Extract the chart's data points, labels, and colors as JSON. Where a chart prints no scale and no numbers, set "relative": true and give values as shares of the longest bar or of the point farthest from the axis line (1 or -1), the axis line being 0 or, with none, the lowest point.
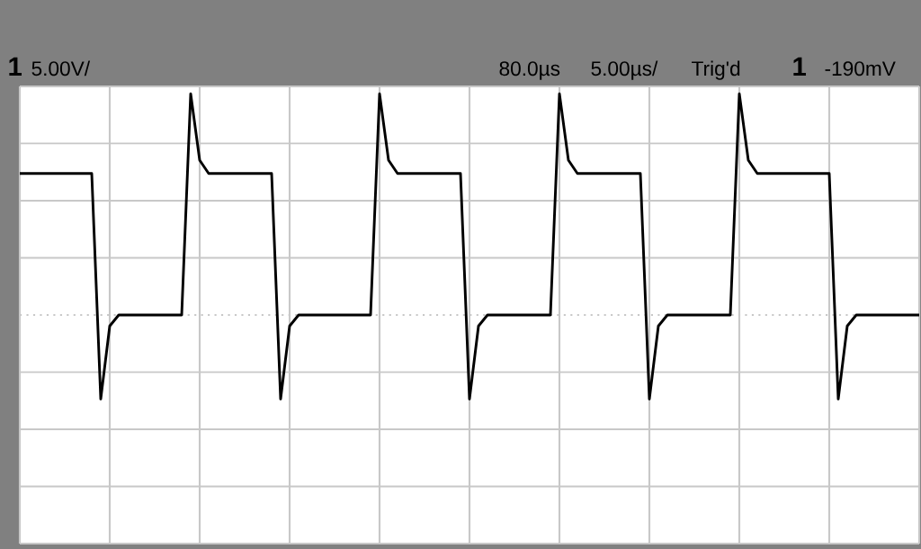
{
  "chart_data": {
    "type": "line",
    "relative": true,
    "grid": true,
    "color": "#000000",
    "ref_lines": [
      {
        "axis": "y",
        "value": 0,
        "color": "#c8c8c8",
        "line_style": "dotted"
      }
    ],
    "annotations": [
      "1",
      "5.00V/",
      "80.0µs",
      "5.00µs/",
      "Trig'd",
      "1",
      "-190mV"
    ],
    "categories": [
      null,
      null,
      null,
      null,
      null,
      null,
      null,
      null,
      null,
      null,
      null,
      null,
      null,
      null,
      null,
      null,
      null,
      null,
      null,
      null,
      null,
      null,
      null,
      null,
      null,
      null,
      null,
      null,
      null,
      null,
      null,
      null,
      null,
      null,
      null,
      null,
      null,
      null,
      null,
      null,
      null,
      null,
      null,
      null,
      null,
      null,
      null,
      null,
      null,
      null,
      null,
      null,
      null,
      null,
      null,
      null,
      null,
      null,
      null,
      null,
      null,
      null,
      null,
      null,
      null,
      null,
      null,
      null,
      null,
      null,
      null,
      null,
      null,
      null,
      null,
      null,
      null,
      null,
      null,
      null,
      null,
      null,
      null,
      null,
      null,
      null,
      null,
      null,
      null,
      null,
      null,
      null,
      null,
      null,
      null,
      null,
      null,
      null,
      null,
      null,
      null
    ],
    "values": [
      0.64,
      0.64,
      0.64,
      0.64,
      0.64,
      0.64,
      0.64,
      0.64,
      0.64,
      -0.38,
      -0.05,
      0,
      0,
      0,
      0,
      0,
      0,
      0,
      0,
      1,
      0.7,
      0.64,
      0.64,
      0.64,
      0.64,
      0.64,
      0.64,
      0.64,
      0.64,
      -0.38,
      -0.05,
      0,
      0,
      0,
      0,
      0,
      0,
      0,
      0,
      0,
      1,
      0.7,
      0.64,
      0.64,
      0.64,
      0.64,
      0.64,
      0.64,
      0.64,
      0.64,
      -0.38,
      -0.05,
      0,
      0,
      0,
      0,
      0,
      0,
      0,
      0,
      1,
      0.7,
      0.64,
      0.64,
      0.64,
      0.64,
      0.64,
      0.64,
      0.64,
      0.64,
      -0.38,
      -0.05,
      0,
      0,
      0,
      0,
      0,
      0,
      0,
      0,
      1,
      0.7,
      0.64,
      0.64,
      0.64,
      0.64,
      0.64,
      0.64,
      0.64,
      0.64,
      0.64,
      -0.38,
      -0.05,
      0,
      0,
      0,
      0,
      0,
      0,
      0,
      0
    ]
  }
}
